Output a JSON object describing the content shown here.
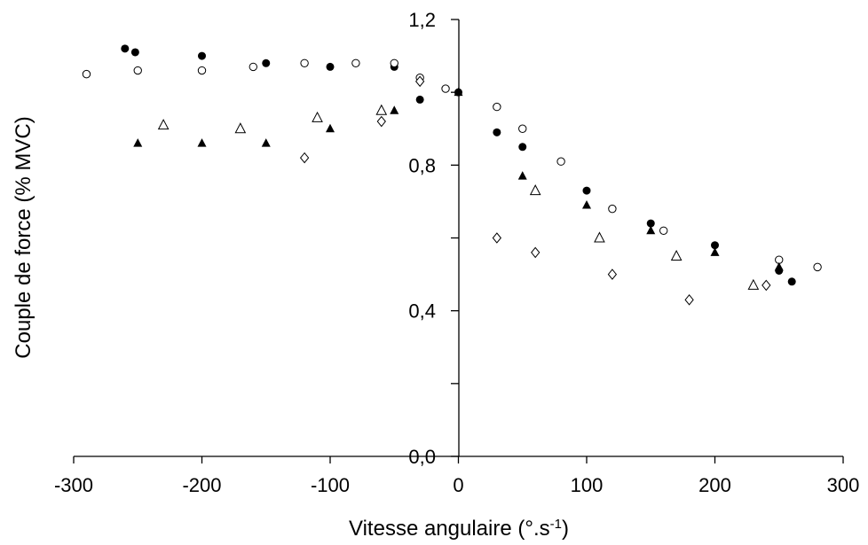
{
  "chart_data": {
    "type": "scatter",
    "title": "",
    "xlabel": "Vitesse angulaire (°.s",
    "xlabel_superscript": "-1",
    "xlabel_close": ")",
    "ylabel": "Couple de force (% MVC)",
    "xlim": [
      -300,
      300
    ],
    "ylim": [
      0,
      1.2
    ],
    "x_ticks": [
      -300,
      -200,
      -100,
      0,
      100,
      200,
      300
    ],
    "x_tick_labels": [
      "-300",
      "-200",
      "-100",
      "0",
      "100",
      "200",
      "300"
    ],
    "y_ticks": [
      0,
      0.4,
      0.8,
      1.2
    ],
    "y_tick_labels": [
      "0,0",
      "0,4",
      "0,8",
      "1,2"
    ],
    "y_minor_ticks": [
      0.2,
      0.6,
      1.0
    ],
    "grid": false,
    "legend": "none",
    "series": [
      {
        "marker": "filled-circle",
        "points": [
          [
            -260,
            1.12
          ],
          [
            -252,
            1.11
          ],
          [
            -200,
            1.1
          ],
          [
            -150,
            1.08
          ],
          [
            -100,
            1.07
          ],
          [
            -50,
            1.07
          ],
          [
            -30,
            0.98
          ],
          [
            0,
            1.0
          ],
          [
            30,
            0.89
          ],
          [
            50,
            0.85
          ],
          [
            100,
            0.73
          ],
          [
            150,
            0.64
          ],
          [
            200,
            0.58
          ],
          [
            250,
            0.51
          ],
          [
            260,
            0.48
          ]
        ]
      },
      {
        "marker": "open-circle",
        "points": [
          [
            -290,
            1.05
          ],
          [
            -250,
            1.06
          ],
          [
            -200,
            1.06
          ],
          [
            -160,
            1.07
          ],
          [
            -120,
            1.08
          ],
          [
            -80,
            1.08
          ],
          [
            -50,
            1.08
          ],
          [
            -30,
            1.04
          ],
          [
            -10,
            1.01
          ],
          [
            30,
            0.96
          ],
          [
            50,
            0.9
          ],
          [
            80,
            0.81
          ],
          [
            120,
            0.68
          ],
          [
            160,
            0.62
          ],
          [
            250,
            0.54
          ],
          [
            280,
            0.52
          ]
        ]
      },
      {
        "marker": "filled-triangle",
        "points": [
          [
            -250,
            0.86
          ],
          [
            -200,
            0.86
          ],
          [
            -150,
            0.86
          ],
          [
            -100,
            0.9
          ],
          [
            -50,
            0.95
          ],
          [
            0,
            1.0
          ],
          [
            50,
            0.77
          ],
          [
            100,
            0.69
          ],
          [
            150,
            0.62
          ],
          [
            200,
            0.56
          ],
          [
            250,
            0.52
          ]
        ]
      },
      {
        "marker": "open-triangle",
        "points": [
          [
            -230,
            0.91
          ],
          [
            -170,
            0.9
          ],
          [
            -110,
            0.93
          ],
          [
            -60,
            0.95
          ],
          [
            60,
            0.73
          ],
          [
            110,
            0.6
          ],
          [
            170,
            0.55
          ],
          [
            230,
            0.47
          ]
        ]
      },
      {
        "marker": "open-diamond",
        "points": [
          [
            -120,
            0.82
          ],
          [
            -60,
            0.92
          ],
          [
            -30,
            1.03
          ],
          [
            30,
            0.6
          ],
          [
            60,
            0.56
          ],
          [
            120,
            0.5
          ],
          [
            180,
            0.43
          ],
          [
            240,
            0.47
          ]
        ]
      }
    ]
  }
}
